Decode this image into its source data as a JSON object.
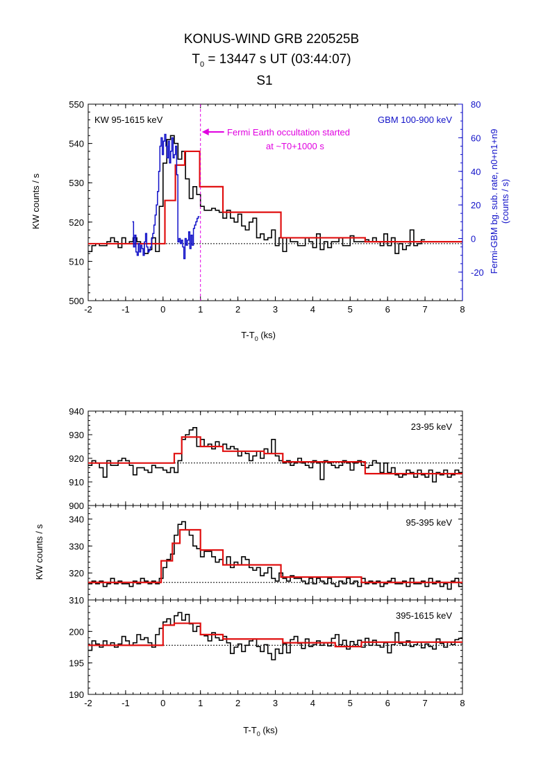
{
  "title": {
    "line1": "KONUS-WIND GRB 220525B",
    "t0_symbol": "T",
    "t0_sub": "0",
    "t0_rest": " = 13447 s UT (03:44:07)",
    "line3": "S1"
  },
  "colors": {
    "kw": "#000000",
    "fit": "#e01010",
    "gbm": "#1010c8",
    "annot": "#e000e0",
    "gbm_axis": "#1010c8"
  },
  "xaxis": {
    "label_main": "T-T",
    "label_sub": "0",
    "label_unit": " (ks)",
    "range": [
      -2,
      8
    ],
    "ticks": [
      -2,
      -1,
      0,
      1,
      2,
      3,
      4,
      5,
      6,
      7,
      8
    ]
  },
  "chart_data": [
    {
      "type": "line",
      "panel": "top",
      "ylabel": "KW counts / s",
      "ylim": [
        500,
        550
      ],
      "yticks": [
        500,
        510,
        520,
        530,
        540,
        550
      ],
      "y2label_line1": "Fermi-GBM bg. sub. rate, n0+n1+n9",
      "y2label_line2": "(counts / s)",
      "y2lim": [
        -37,
        80
      ],
      "y2ticks": [
        -20,
        0,
        20,
        40,
        60,
        80
      ],
      "legend_left": "KW 95-1615 keV",
      "legend_right": "GBM 100-900 keV",
      "annotation_line1": "Fermi Earth occultation started",
      "annotation_line2": "at ~T0+1000 s",
      "occultation_x": 1.0,
      "baseline": 514.5,
      "bin_width_ks": 0.1,
      "kw_x_start": -2.0,
      "kw_values": [
        512.5,
        514,
        514.5,
        514,
        514,
        515,
        516,
        515,
        513.5,
        516,
        514.5,
        515,
        516,
        515,
        514.5,
        512,
        513,
        516,
        512.5,
        524,
        535,
        541,
        542,
        540,
        536,
        538,
        531,
        526,
        529,
        527,
        524,
        523,
        523,
        523.5,
        523,
        522.5,
        521,
        523,
        521,
        520,
        522,
        519,
        518,
        520,
        521,
        516,
        517,
        515.5,
        516,
        518,
        514,
        516,
        512.5,
        516,
        515,
        515,
        514,
        514,
        516,
        515,
        513.5,
        517,
        513,
        515,
        513.5,
        515,
        515,
        516,
        514,
        514,
        516.5,
        515,
        515,
        515,
        515.5,
        515,
        516,
        515,
        514,
        517,
        514,
        516,
        512,
        514.5,
        513,
        514,
        518,
        514,
        514.5,
        515.5
      ],
      "fit_segments": [
        {
          "x0": -2.0,
          "x1": -0.05,
          "y": 514.5
        },
        {
          "x0": -0.05,
          "x1": 0.05,
          "y": 514.5
        },
        {
          "x0": 0.05,
          "x1": 0.33,
          "y": 525.5
        },
        {
          "x0": 0.33,
          "x1": 0.58,
          "y": 534.5
        },
        {
          "x0": 0.58,
          "x1": 0.98,
          "y": 538
        },
        {
          "x0": 0.98,
          "x1": 1.6,
          "y": 529
        },
        {
          "x0": 1.6,
          "x1": 3.15,
          "y": 522.5
        },
        {
          "x0": 3.15,
          "x1": 5.4,
          "y": 516
        },
        {
          "x0": 5.4,
          "x1": 8.0,
          "y": 515
        }
      ],
      "gbm_x_start": -0.82,
      "gbm_bin_width_ks": 0.032,
      "gbm_values": [
        10,
        -5,
        2,
        -8,
        -10,
        -3,
        -8,
        -4,
        -6,
        -10,
        -2,
        3,
        -5,
        -8,
        -7,
        -5,
        0,
        3,
        8,
        14,
        20,
        28,
        40,
        55,
        60,
        50,
        58,
        62,
        55,
        48,
        58,
        45,
        52,
        60,
        48,
        50,
        55,
        38,
        -2,
        0,
        -3,
        -1,
        -5,
        -12,
        0,
        -4,
        -1,
        4,
        -6,
        2,
        -4,
        6,
        8,
        10,
        12,
        13
      ]
    },
    {
      "type": "line",
      "panel": "bottom-1",
      "label": "23-95 keV",
      "ylim": [
        900,
        940
      ],
      "yticks": [
        900,
        910,
        920,
        930,
        940
      ],
      "baseline": 918,
      "bin_width_ks": 0.1,
      "x_start": -2.0,
      "values": [
        917,
        919,
        918,
        916,
        912,
        919,
        917,
        917,
        919,
        920,
        919,
        917,
        913,
        916,
        916,
        915,
        914,
        917,
        916,
        916,
        915,
        914,
        916,
        914,
        919,
        928,
        930,
        932,
        933,
        925,
        928,
        925,
        926,
        924,
        927,
        925,
        926,
        924,
        925,
        924,
        921,
        923,
        922,
        919,
        921,
        923,
        920,
        924,
        922,
        928,
        921,
        919,
        918,
        919,
        917,
        918,
        920,
        918,
        917,
        916,
        919,
        918,
        911,
        919,
        918,
        917,
        916,
        917,
        919,
        918,
        915,
        918,
        919,
        917,
        916,
        917,
        919,
        918,
        914,
        918,
        914,
        916,
        913,
        912,
        913,
        915,
        914,
        912,
        915,
        913,
        912,
        915,
        910,
        914,
        913,
        915,
        912,
        913,
        915,
        914
      ],
      "fit_segments": [
        {
          "x0": -2.0,
          "x1": 0.3,
          "y": 918
        },
        {
          "x0": 0.3,
          "x1": 0.5,
          "y": 922
        },
        {
          "x0": 0.5,
          "x1": 1.0,
          "y": 929
        },
        {
          "x0": 1.0,
          "x1": 1.6,
          "y": 925
        },
        {
          "x0": 1.6,
          "x1": 2.7,
          "y": 923
        },
        {
          "x0": 2.7,
          "x1": 3.2,
          "y": 922
        },
        {
          "x0": 3.2,
          "x1": 5.4,
          "y": 918.5
        },
        {
          "x0": 5.4,
          "x1": 8.0,
          "y": 913.5
        }
      ]
    },
    {
      "type": "line",
      "panel": "bottom-2",
      "label": "95-395 keV",
      "ylim": [
        310,
        345
      ],
      "yticks": [
        310,
        320,
        330,
        340
      ],
      "baseline": 316.5,
      "bin_width_ks": 0.1,
      "x_start": -2.0,
      "values": [
        316,
        317,
        316,
        317,
        315,
        316,
        318,
        316,
        317,
        316,
        316,
        315,
        317,
        316,
        318,
        317,
        316,
        317,
        316,
        318,
        322,
        325,
        327,
        334,
        338,
        339,
        336,
        334,
        330,
        329,
        326,
        328,
        328,
        326,
        324,
        325,
        323,
        326,
        322,
        324,
        323,
        326,
        325,
        322,
        321,
        322,
        319,
        320,
        322,
        318,
        317,
        320,
        318,
        317,
        319,
        318,
        318,
        317,
        316,
        318,
        316,
        318,
        317,
        316,
        318,
        316,
        315,
        317,
        316,
        318,
        316,
        317,
        315,
        318,
        316,
        317,
        316,
        317,
        315,
        316,
        317,
        318,
        316,
        316,
        317,
        315,
        318,
        316,
        316,
        317,
        315,
        318,
        316,
        317,
        315,
        316,
        314,
        317,
        318,
        315
      ],
      "fit_segments": [
        {
          "x0": -2.0,
          "x1": -0.05,
          "y": 316.5
        },
        {
          "x0": -0.05,
          "x1": 0.25,
          "y": 324.5
        },
        {
          "x0": 0.25,
          "x1": 0.45,
          "y": 331
        },
        {
          "x0": 0.45,
          "x1": 1.0,
          "y": 336
        },
        {
          "x0": 1.0,
          "x1": 1.6,
          "y": 328.5
        },
        {
          "x0": 1.6,
          "x1": 3.15,
          "y": 323
        },
        {
          "x0": 3.15,
          "x1": 5.3,
          "y": 318.5
        },
        {
          "x0": 5.3,
          "x1": 8.0,
          "y": 316.5
        }
      ]
    },
    {
      "type": "line",
      "panel": "bottom-3",
      "label": "395-1615 keV",
      "ylim": [
        190,
        205
      ],
      "yticks": [
        190,
        195,
        200
      ],
      "baseline": 197.8,
      "bin_width_ks": 0.1,
      "x_start": -2.0,
      "values": [
        197,
        198.5,
        198,
        197.5,
        198.5,
        197.8,
        198.2,
        197.5,
        198,
        199.2,
        198.5,
        197.8,
        198.2,
        199.5,
        198.7,
        199,
        198.2,
        197.5,
        199.5,
        200.5,
        201.5,
        202,
        201,
        202.5,
        203,
        201.8,
        202.7,
        201.2,
        200,
        200.8,
        199.5,
        199.3,
        198.5,
        199.8,
        199,
        198.6,
        199.2,
        198.2,
        196.5,
        197.5,
        198,
        196.8,
        197.8,
        198.5,
        198.8,
        197.6,
        196.8,
        197.9,
        196.5,
        195.5,
        197.2,
        196.5,
        198,
        196.6,
        198.7,
        199.2,
        198.1,
        197.3,
        198.8,
        197.6,
        197.9,
        198.5,
        197.8,
        198.2,
        197.7,
        198.9,
        199.5,
        197.9,
        198.6,
        197.2,
        198.4,
        197.9,
        198.6,
        197.5,
        198.9,
        197.8,
        198.6,
        197.8,
        197.5,
        198.2,
        196.6,
        197.9,
        199.8,
        198.1,
        197.8,
        198.5,
        197.6,
        197.9,
        198.3,
        197.4,
        198,
        197.6,
        197.2,
        198.8,
        198.1,
        197.5,
        198.3,
        197.9,
        198.7,
        198.9
      ],
      "fit_segments": [
        {
          "x0": -2.0,
          "x1": 0.0,
          "y": 197.8
        },
        {
          "x0": 0.0,
          "x1": 0.3,
          "y": 201
        },
        {
          "x0": 0.3,
          "x1": 1.0,
          "y": 201.3
        },
        {
          "x0": 1.0,
          "x1": 1.6,
          "y": 199.5
        },
        {
          "x0": 1.6,
          "x1": 3.2,
          "y": 198.8
        },
        {
          "x0": 3.2,
          "x1": 4.6,
          "y": 198.2
        },
        {
          "x0": 4.6,
          "x1": 5.3,
          "y": 197.6
        },
        {
          "x0": 5.3,
          "x1": 8.0,
          "y": 198.3
        }
      ]
    }
  ],
  "bottom_ylabel": "KW counts / s"
}
